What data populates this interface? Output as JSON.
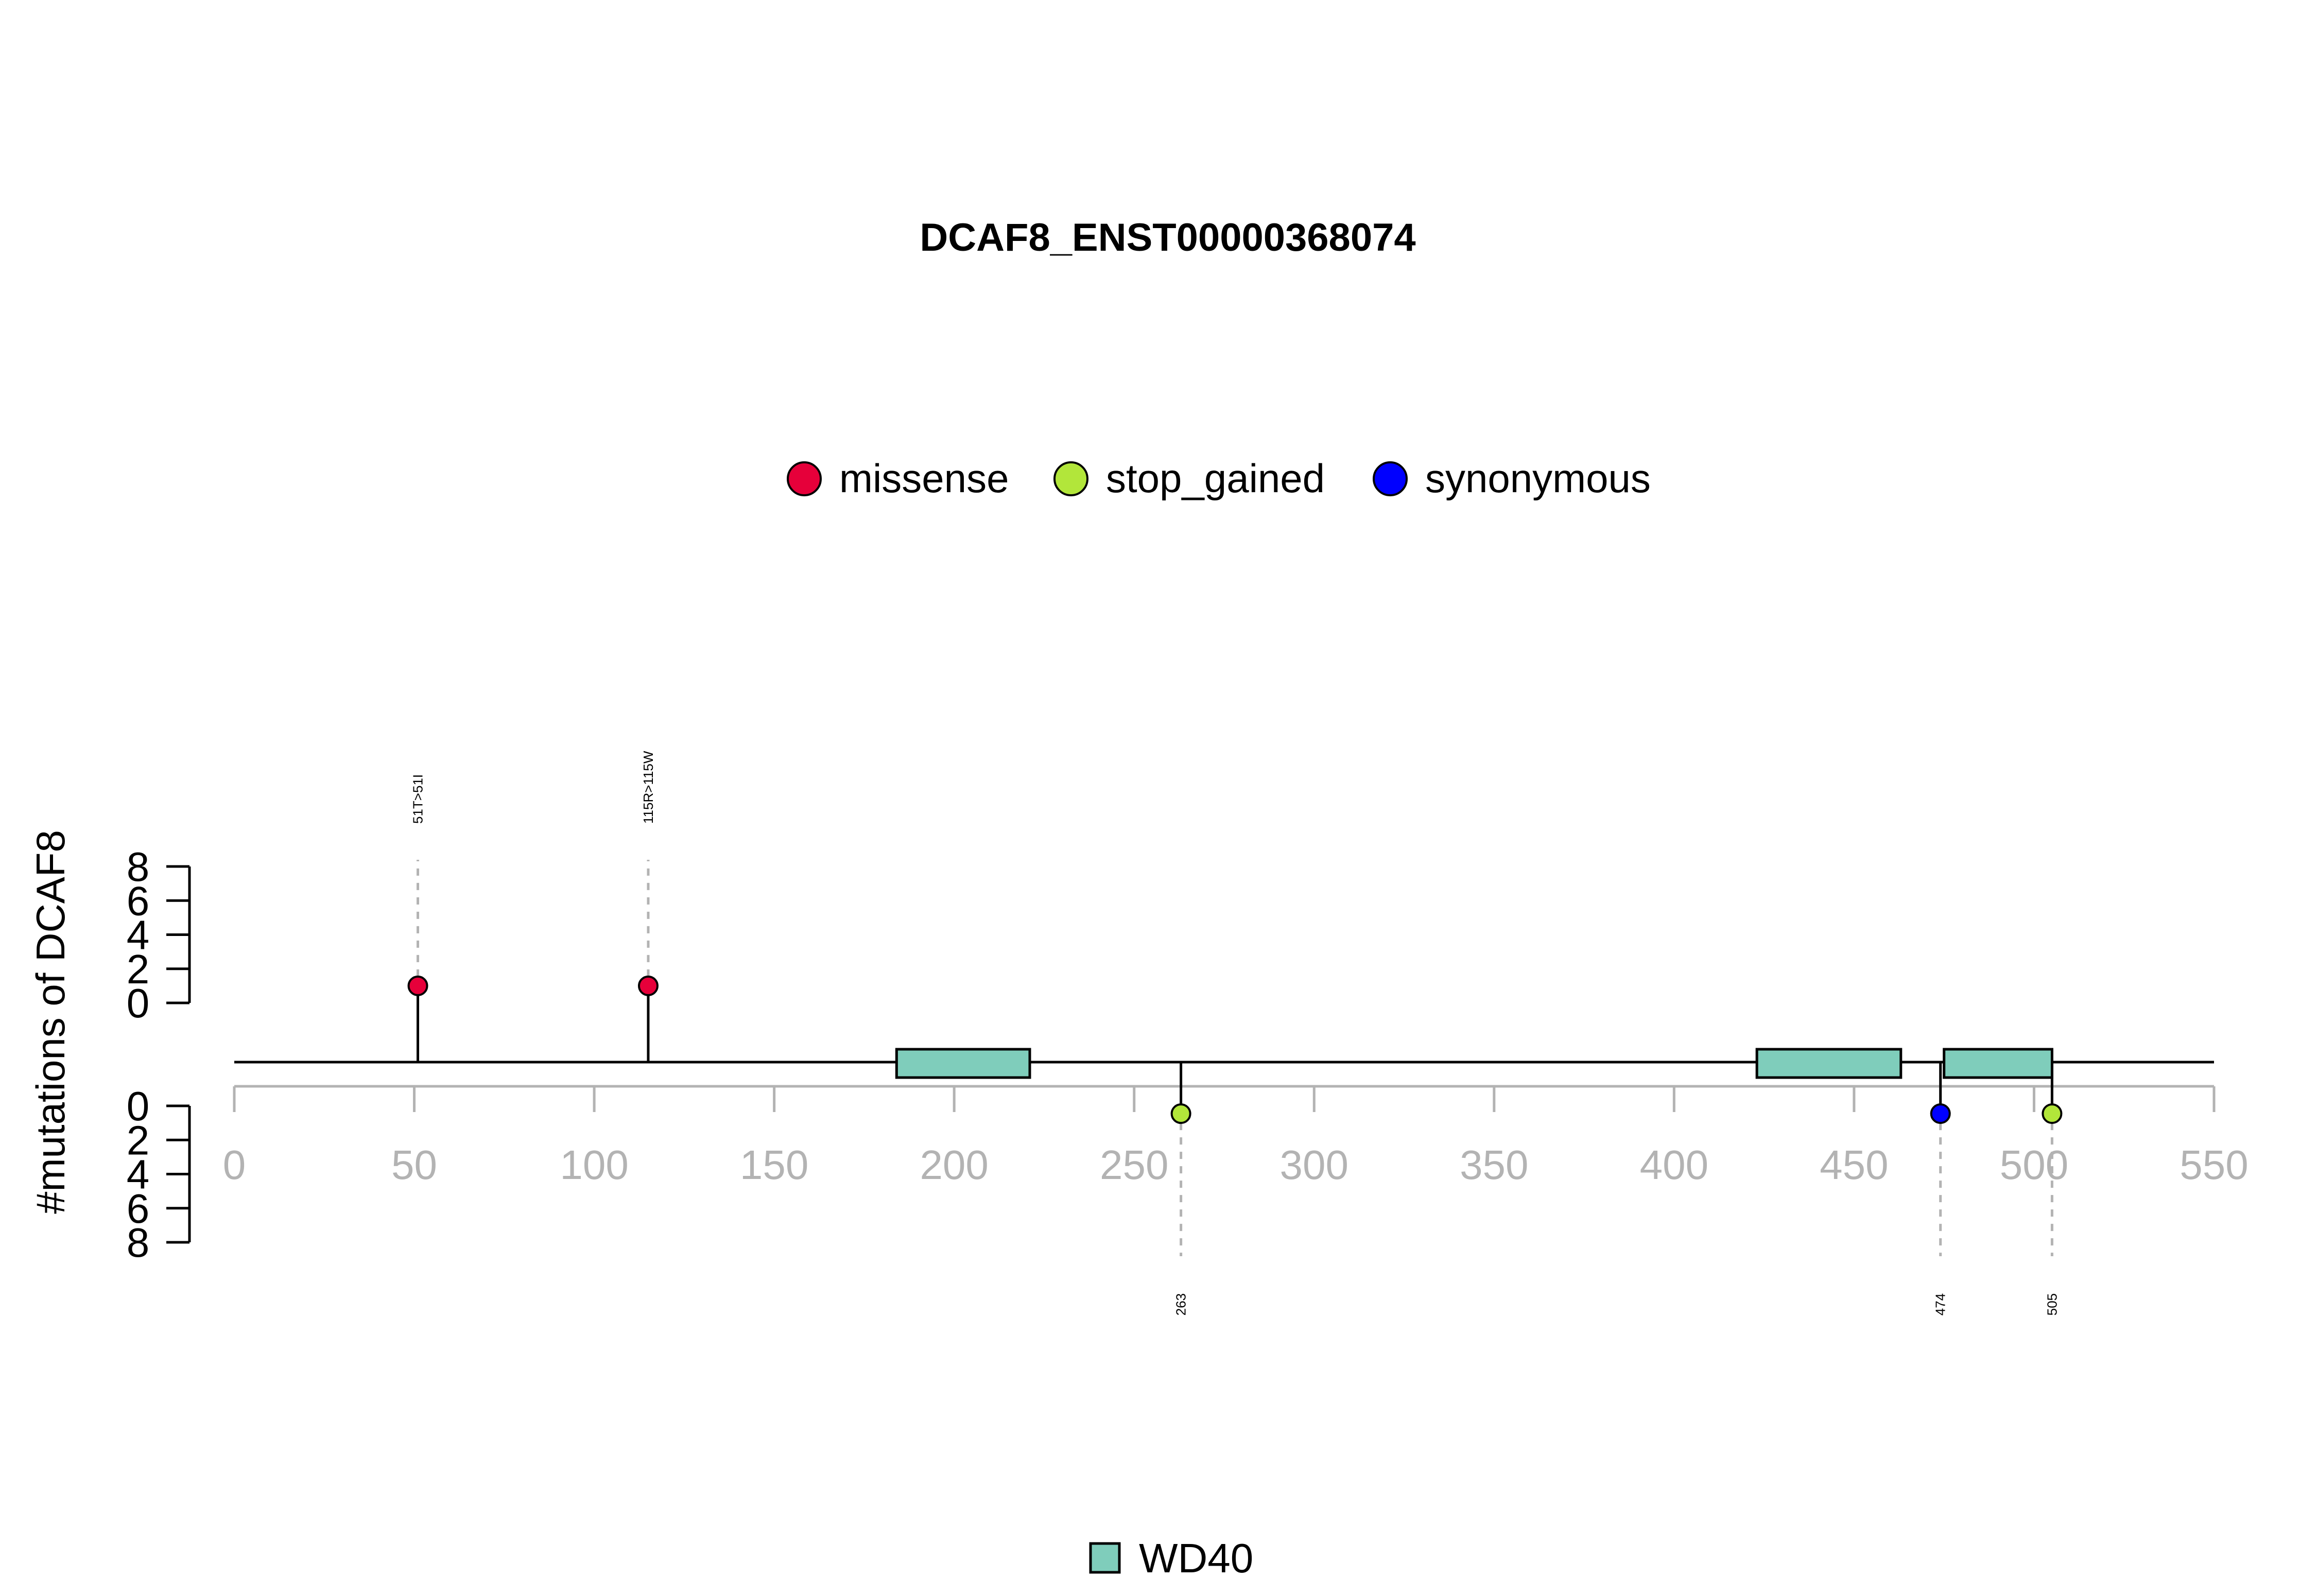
{
  "chart_data": {
    "type": "lollipop",
    "title": "DCAF8_ENST00000368074",
    "ylabel": "#mutations of DCAF8",
    "xlim": [
      0,
      550
    ],
    "x_ticks": [
      0,
      50,
      100,
      150,
      200,
      250,
      300,
      350,
      400,
      450,
      500,
      550
    ],
    "y_ticks_top": [
      0,
      2,
      4,
      6,
      8
    ],
    "y_ticks_bottom": [
      0,
      2,
      4,
      6,
      8
    ],
    "mutation_legend": [
      {
        "label": "missense",
        "color": "#e6003a"
      },
      {
        "label": "stop_gained",
        "color": "#b2e63a"
      },
      {
        "label": "synonymous",
        "color": "#0000ff"
      }
    ],
    "domain_legend": [
      {
        "label": "WD40",
        "color": "#7fcdbb"
      }
    ],
    "mutations_top": [
      {
        "position": 51,
        "count": 1,
        "type": "missense",
        "label": "51T>51I"
      },
      {
        "position": 115,
        "count": 1,
        "type": "missense",
        "label": "115R>115W"
      }
    ],
    "mutations_bottom": [
      {
        "position": 263,
        "count": 1,
        "type": "stop_gained",
        "label": "263"
      },
      {
        "position": 474,
        "count": 1,
        "type": "synonymous",
        "label": "474"
      },
      {
        "position": 505,
        "count": 1,
        "type": "stop_gained",
        "label": "505"
      }
    ],
    "domains": [
      {
        "name": "WD40",
        "start": 184,
        "end": 221
      },
      {
        "name": "WD40",
        "start": 423,
        "end": 463
      },
      {
        "name": "WD40",
        "start": 475,
        "end": 505
      }
    ],
    "protein_length": 550
  }
}
